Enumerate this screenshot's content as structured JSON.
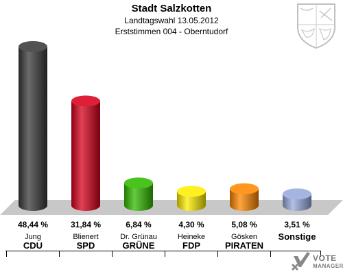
{
  "title": "Stadt Salzkotten",
  "subtitle1": "Landtagswahl 13.05.2012",
  "subtitle2": "Erststimmen 004 - Oberntudorf",
  "logo": {
    "line1": "VOTE",
    "line2": "MANAGER"
  },
  "chart_data": {
    "type": "bar",
    "categories": [
      "CDU",
      "SPD",
      "GRÜNE",
      "FDP",
      "PIRATEN",
      "Sonstige"
    ],
    "candidates": [
      "Jung",
      "Blienert",
      "Dr. Grünau",
      "Heineke",
      "Gösken",
      ""
    ],
    "values": [
      48.44,
      31.84,
      6.84,
      4.3,
      5.08,
      3.51
    ],
    "labels": [
      "48,44 %",
      "31,84 %",
      "6,84 %",
      "4,30 %",
      "5,08 %",
      "3,51 %"
    ],
    "colors": [
      "#3a3a3a",
      "#d8001c",
      "#33bb00",
      "#ffee00",
      "#ff8800",
      "#99aadd"
    ],
    "ylim": [
      0,
      50
    ],
    "grid": false,
    "legend": "none"
  }
}
